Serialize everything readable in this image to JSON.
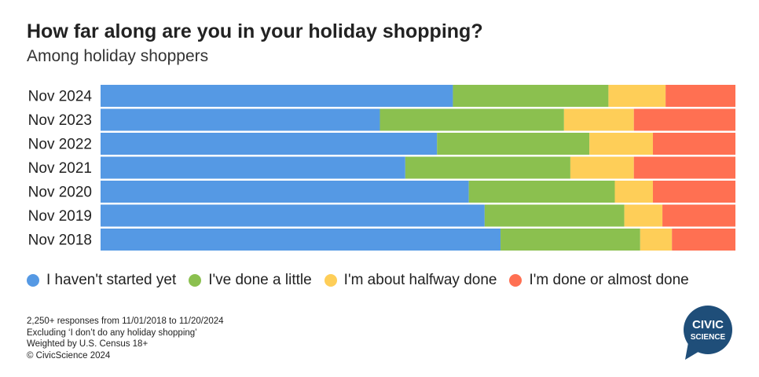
{
  "title": "How far along are you in your holiday shopping?",
  "subtitle": "Among holiday shoppers",
  "chart_data": {
    "type": "bar",
    "orientation": "horizontal",
    "stacked": true,
    "percent_stacked": true,
    "categories": [
      "Nov 2024",
      "Nov 2023",
      "Nov 2022",
      "Nov 2021",
      "Nov 2020",
      "Nov 2019",
      "Nov 2018"
    ],
    "series": [
      {
        "name": "I haven't started yet",
        "color": "#5599E4",
        "values": [
          55.5,
          44,
          53,
          48,
          58,
          60.5,
          63
        ]
      },
      {
        "name": "I've done a little",
        "color": "#8BC04F",
        "values": [
          24.5,
          29,
          24,
          26,
          23,
          22,
          22
        ]
      },
      {
        "name": "I'm about halfway done",
        "color": "#FECE58",
        "values": [
          9,
          11,
          10,
          10,
          6,
          6,
          5
        ]
      },
      {
        "name": "I'm done or almost done",
        "color": "#FF7052",
        "values": [
          11,
          16,
          13,
          16,
          13,
          11.5,
          10
        ]
      }
    ],
    "xlim": [
      0,
      100
    ],
    "grid": false,
    "legend_position": "bottom"
  },
  "footnotes": [
    "2,250+ responses from 11/01/2018 to 11/20/2024",
    "Excluding ‘I don’t do any holiday shopping’",
    "Weighted by U.S. Census 18+",
    "© CivicScience 2024"
  ],
  "logo": {
    "line1": "CIVIC",
    "line2": "SCIENCE",
    "color": "#1F4E79"
  }
}
